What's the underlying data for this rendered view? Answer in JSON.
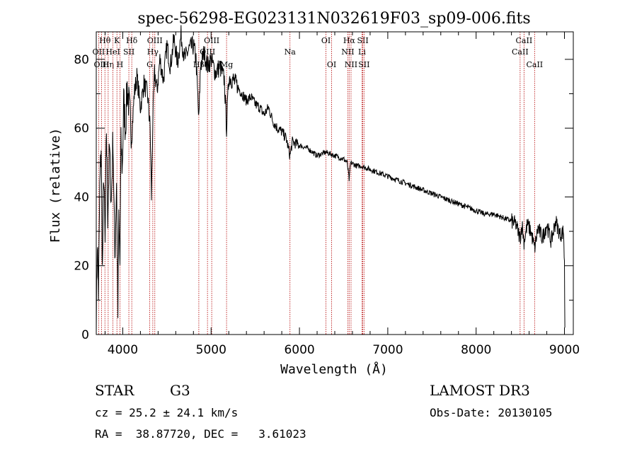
{
  "chart_data": {
    "type": "line",
    "title": "spec-56298-EG023131N032619F03_sp09-006.fits",
    "xlabel": "Wavelength (Å)",
    "ylabel": "Flux (relative)",
    "xlim": [
      3700,
      9100
    ],
    "ylim": [
      0,
      88
    ],
    "xticks": [
      4000,
      5000,
      6000,
      7000,
      8000,
      9000
    ],
    "xtick_labels": [
      "4000",
      "5000",
      "6000",
      "7000",
      "8000",
      "9000"
    ],
    "yticks": [
      0,
      20,
      40,
      60,
      80
    ],
    "ytick_labels": [
      "0",
      "20",
      "40",
      "60",
      "80"
    ],
    "spectrum": {
      "x": [
        3700,
        3712,
        3725,
        3740,
        3755,
        3770,
        3785,
        3800,
        3815,
        3830,
        3850,
        3870,
        3890,
        3910,
        3930,
        3945,
        3955,
        3968,
        3980,
        3995,
        4010,
        4030,
        4050,
        4080,
        4102,
        4130,
        4160,
        4200,
        4240,
        4280,
        4310,
        4325,
        4340,
        4360,
        4390,
        4420,
        4460,
        4500,
        4540,
        4580,
        4620,
        4660,
        4700,
        4750,
        4800,
        4830,
        4861,
        4880,
        4920,
        4960,
        5000,
        5050,
        5100,
        5150,
        5175,
        5200,
        5250,
        5300,
        5350,
        5400,
        5450,
        5500,
        5550,
        5600,
        5650,
        5700,
        5750,
        5800,
        5850,
        5893,
        5920,
        6000,
        6100,
        6200,
        6300,
        6400,
        6500,
        6540,
        6563,
        6580,
        6650,
        6700,
        6800,
        6900,
        7000,
        7100,
        7200,
        7300,
        7400,
        7500,
        7600,
        7700,
        7800,
        7900,
        8000,
        8100,
        8200,
        8300,
        8400,
        8450,
        8498,
        8520,
        8542,
        8580,
        8620,
        8662,
        8700,
        8750,
        8800,
        8850,
        8900,
        8950,
        8990,
        9000,
        9005
      ],
      "y": [
        2,
        28,
        12,
        42,
        55,
        18,
        48,
        25,
        60,
        35,
        54,
        38,
        58,
        22,
        45,
        8,
        32,
        20,
        55,
        48,
        68,
        60,
        72,
        64,
        58,
        70,
        75,
        66,
        73,
        70,
        60,
        40,
        62,
        76,
        71,
        80,
        74,
        84,
        78,
        86,
        79,
        87,
        80,
        83,
        84,
        80,
        62,
        78,
        82,
        78,
        80,
        76,
        78,
        74,
        60,
        75,
        74,
        72,
        70,
        68,
        69,
        67,
        66,
        64,
        66,
        62,
        60,
        59,
        57,
        52,
        56,
        55,
        54,
        52,
        53,
        52,
        51,
        50,
        45,
        50,
        49,
        49,
        48,
        47,
        46,
        45,
        44,
        43,
        42,
        41,
        40,
        39,
        38,
        37,
        36,
        35,
        35,
        34,
        33,
        32,
        28,
        32,
        27,
        32,
        30,
        25,
        31,
        28,
        32,
        27,
        33,
        29,
        30,
        20,
        2
      ]
    },
    "lines": [
      {
        "label": "Hθ",
        "wavelength": 3798,
        "row": 0
      },
      {
        "label": "OII",
        "wavelength": 3727,
        "row": 1
      },
      {
        "label": "OIII",
        "wavelength": 3760,
        "row": 2
      },
      {
        "label": "Hη",
        "wavelength": 3835,
        "row": 2
      },
      {
        "label": "K",
        "wavelength": 3934,
        "row": 0
      },
      {
        "label": "HeI",
        "wavelength": 3889,
        "row": 1
      },
      {
        "label": "H",
        "wavelength": 3968,
        "row": 2
      },
      {
        "label": "SII",
        "wavelength": 4069,
        "row": 1
      },
      {
        "label": "Hδ",
        "wavelength": 4102,
        "row": 0
      },
      {
        "label": "OIII",
        "wavelength": 4363,
        "row": 0
      },
      {
        "label": "Hγ",
        "wavelength": 4340,
        "row": 1
      },
      {
        "label": "G",
        "wavelength": 4305,
        "row": 2
      },
      {
        "label": "Hβ",
        "wavelength": 4861,
        "row": 2
      },
      {
        "label": "OIII",
        "wavelength": 4959,
        "row": 1
      },
      {
        "label": "OIII",
        "wavelength": 5007,
        "row": 0
      },
      {
        "label": "Mg",
        "wavelength": 5175,
        "row": 2
      },
      {
        "label": "Na",
        "wavelength": 5893,
        "row": 1
      },
      {
        "label": "OI",
        "wavelength": 6300,
        "row": 0
      },
      {
        "label": "OI",
        "wavelength": 6364,
        "row": 2
      },
      {
        "label": "Hα",
        "wavelength": 6563,
        "row": 0
      },
      {
        "label": "NII",
        "wavelength": 6548,
        "row": 1
      },
      {
        "label": "NII",
        "wavelength": 6584,
        "row": 2
      },
      {
        "label": "SII",
        "wavelength": 6717,
        "row": 0
      },
      {
        "label": "Li",
        "wavelength": 6708,
        "row": 1
      },
      {
        "label": "SII",
        "wavelength": 6731,
        "row": 2
      },
      {
        "label": "CaII",
        "wavelength": 8542,
        "row": 0
      },
      {
        "label": "CaII",
        "wavelength": 8498,
        "row": 1
      },
      {
        "label": "CaII",
        "wavelength": 8662,
        "row": 2
      }
    ]
  },
  "info": {
    "class": "STAR",
    "subclass": "G3",
    "survey": "LAMOST DR3",
    "cz": "cz = 25.2 ± 24.1 km/s",
    "obs_date": "Obs-Date: 20130105",
    "coords": "RA =  38.87720, DEC =   3.61023"
  },
  "colors": {
    "spectrum": "#000000",
    "line_markers": "#b40000",
    "axes": "#000000"
  }
}
